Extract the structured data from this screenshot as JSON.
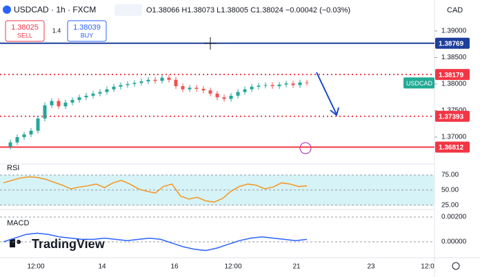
{
  "header": {
    "symbol": "USDCAD · 1h · FXCM",
    "ohlc": "O1.38066 H1.38073 L1.38005 C1.38024 −0.00042 (−0.03%)"
  },
  "trade": {
    "sell_price": "1.38025",
    "sell": "SELL",
    "spread": "1.4",
    "buy_price": "1.38039",
    "buy": "BUY"
  },
  "price_axis": {
    "currency": "CAD",
    "range": [
      1.36532,
      1.39584
    ],
    "ticks": [
      {
        "value": 1.39,
        "label": "1.39000"
      },
      {
        "value": 1.385,
        "label": "1.38500"
      },
      {
        "value": 1.38,
        "label": "1.38000"
      },
      {
        "value": 1.375,
        "label": "1.37500"
      },
      {
        "value": 1.37,
        "label": "1.37000"
      }
    ]
  },
  "levels": [
    {
      "value": 1.38769,
      "label": "1.38769",
      "color": "#1e3f9a",
      "style": "solid"
    },
    {
      "value": 1.38179,
      "label": "1.38179",
      "color": "#f23645",
      "style": "dotted"
    },
    {
      "value": 1.37393,
      "label": "1.37393",
      "color": "#f23645",
      "style": "dotted"
    },
    {
      "value": 1.36812,
      "label": "1.36812",
      "color": "#f23645",
      "style": "solid"
    }
  ],
  "symbol_tag": "USDCAD",
  "closes": [
    1.3682,
    1.369,
    1.37,
    1.3705,
    1.3712,
    1.3735,
    1.376,
    1.3768,
    1.3758,
    1.3765,
    1.377,
    1.3775,
    1.3778,
    1.3782,
    1.3785,
    1.379,
    1.3795,
    1.3798,
    1.38,
    1.3802,
    1.3805,
    1.3808,
    1.3806,
    1.3812,
    1.3808,
    1.3796,
    1.379,
    1.3793,
    1.3791,
    1.3788,
    1.3782,
    1.3775,
    1.3772,
    1.3778,
    1.3785,
    1.379,
    1.3795,
    1.3797,
    1.3798,
    1.3796,
    1.3799,
    1.3801,
    1.3798,
    1.3803,
    1.3802
  ],
  "rsi": {
    "label": "RSI",
    "range": [
      20,
      91
    ],
    "ticks": [
      {
        "value": 75,
        "label": "75.00"
      },
      {
        "value": 50,
        "label": "50.00"
      },
      {
        "value": 25,
        "label": "25.00"
      }
    ],
    "values": [
      62,
      66,
      70,
      72,
      71,
      68,
      63,
      58,
      52,
      55,
      57,
      60,
      54,
      62,
      66,
      60,
      52,
      48,
      45,
      56,
      60,
      40,
      35,
      38,
      32,
      30,
      36,
      48,
      56,
      60,
      58,
      52,
      55,
      62,
      60,
      56,
      57
    ]
  },
  "macd": {
    "label": "MACD",
    "range": [
      -0.00117,
      0.00256
    ],
    "ticks": [
      {
        "value": 0.002,
        "label": "0.00200"
      },
      {
        "value": 0,
        "label": "0.00000"
      }
    ],
    "values": [
      0,
      0.0003,
      0.0006,
      0.0007,
      0.0006,
      0.0004,
      0.0003,
      0.0002,
      0.0002,
      0.0003,
      0.0002,
      0.0001,
      0.0002,
      0.0003,
      0.0002,
      -0.0001,
      -0.0004,
      -0.0006,
      -0.0007,
      -0.0005,
      -0.0002,
      0.0001,
      0.0003,
      0.0004,
      0.0003,
      0.0002,
      0.0001,
      0.0002
    ]
  },
  "time_axis": [
    "12:00",
    "14",
    "16",
    "12:00",
    "21",
    "23",
    "12:0"
  ],
  "logo": "TradingView"
}
